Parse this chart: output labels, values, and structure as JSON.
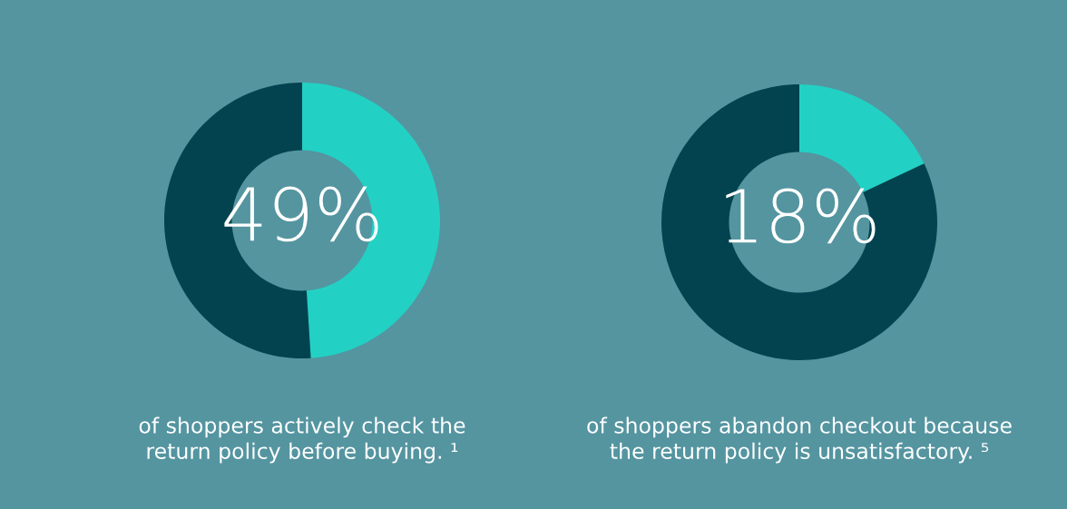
{
  "chart_data": [
    {
      "type": "donut",
      "categories": [
        null,
        null
      ],
      "values": [
        49,
        51
      ],
      "colors": [
        "#22d1c4",
        "#03434f"
      ],
      "value_labels": [
        "49%",
        null
      ],
      "annotations": [
        "of shoppers actively check the\nreturn policy before buying. ¹"
      ]
    },
    {
      "type": "donut",
      "categories": [
        null,
        null
      ],
      "values": [
        18,
        82
      ],
      "colors": [
        "#22d1c4",
        "#03434f"
      ],
      "value_labels": [
        "18%",
        null
      ],
      "annotations": [
        "of shoppers abandon checkout because\nthe return policy is unsatisfactory. ⁵"
      ]
    }
  ]
}
